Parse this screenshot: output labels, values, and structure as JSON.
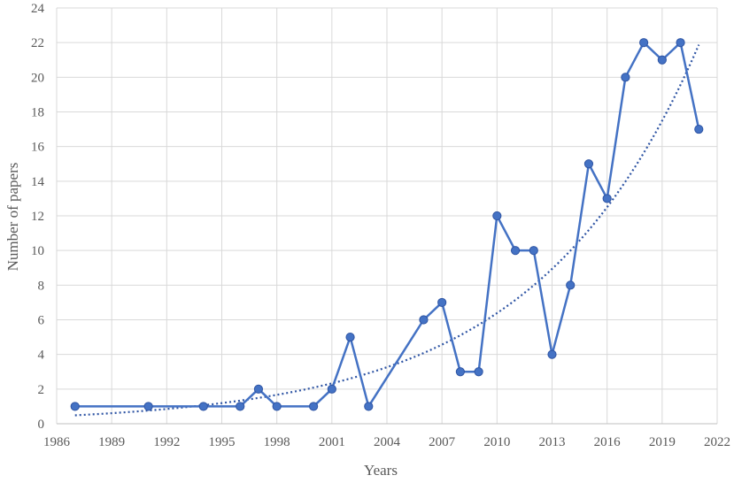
{
  "chart_data": {
    "type": "line",
    "xlabel": "Years",
    "ylabel": "Number of papers",
    "xlim": [
      1986,
      2022
    ],
    "ylim": [
      0,
      24
    ],
    "x_ticks": [
      1986,
      1989,
      1992,
      1995,
      1998,
      2001,
      2004,
      2007,
      2010,
      2013,
      2016,
      2019,
      2022
    ],
    "y_ticks": [
      0,
      2,
      4,
      6,
      8,
      10,
      12,
      14,
      16,
      18,
      20,
      22,
      24
    ],
    "grid": true,
    "series": [
      {
        "x": [
          1987,
          1991,
          1994,
          1996,
          1997,
          1998,
          2000,
          2001,
          2002,
          2003,
          2006,
          2007,
          2008,
          2009,
          2010,
          2011,
          2012,
          2013,
          2014,
          2015,
          2016,
          2017,
          2018,
          2019,
          2020,
          2021
        ],
        "values": [
          1,
          1,
          1,
          1,
          2,
          1,
          1,
          2,
          5,
          1,
          6,
          7,
          3,
          3,
          12,
          10,
          10,
          4,
          8,
          15,
          13,
          20,
          22,
          21,
          22,
          17
        ],
        "color": "#4472c4"
      }
    ],
    "trendline": {
      "type": "exponential",
      "style": "dotted",
      "color": "#2f55a4"
    }
  }
}
